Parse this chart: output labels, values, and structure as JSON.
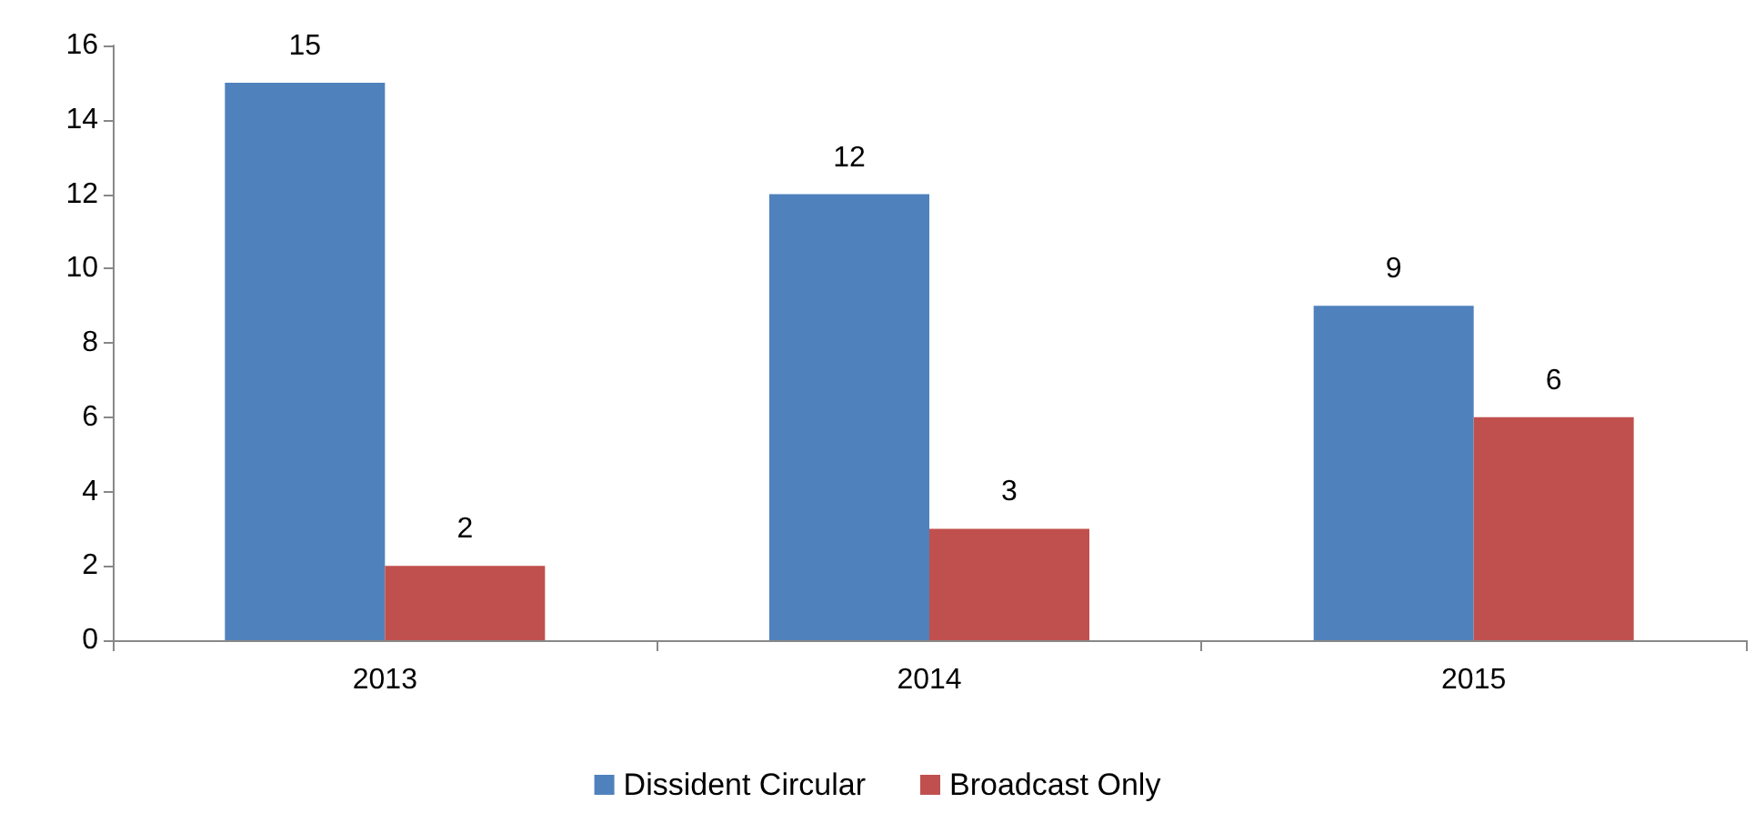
{
  "chart_data": {
    "type": "bar",
    "categories": [
      "2013",
      "2014",
      "2015"
    ],
    "series": [
      {
        "name": "Dissident Circular",
        "color": "#4f81bd",
        "values": [
          15,
          12,
          9
        ]
      },
      {
        "name": "Broadcast Only",
        "color": "#c0504d",
        "values": [
          2,
          3,
          6
        ]
      }
    ],
    "ylim": [
      0,
      16
    ],
    "yticks": [
      0,
      2,
      4,
      6,
      8,
      10,
      12,
      14,
      16
    ],
    "grid": false,
    "legend": "bottom",
    "data_labels": true
  }
}
